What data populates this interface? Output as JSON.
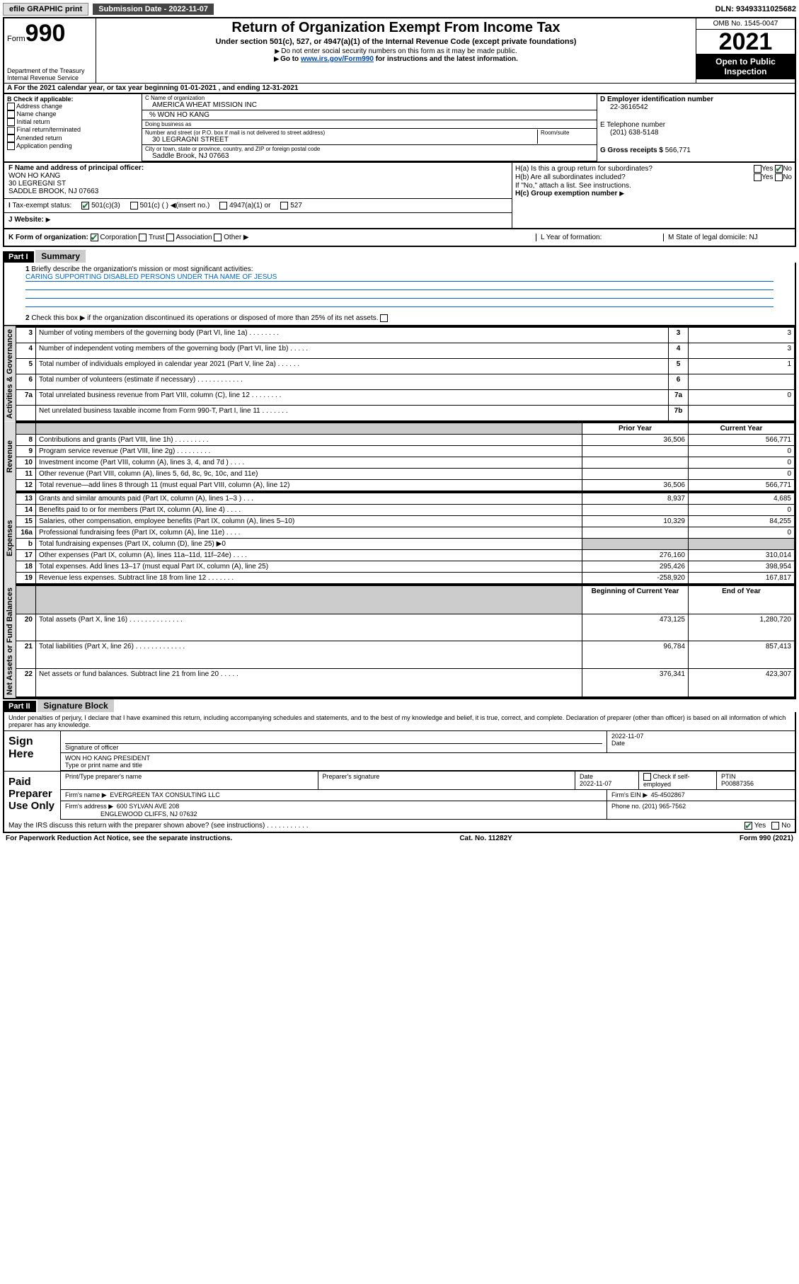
{
  "topbar": {
    "efile_label": "efile GRAPHIC print",
    "submission_label": "Submission Date - 2022-11-07",
    "dln_label": "DLN: 93493311025682"
  },
  "header": {
    "form_label": "Form",
    "form_number": "990",
    "dept": "Department of the Treasury",
    "irs": "Internal Revenue Service",
    "title": "Return of Organization Exempt From Income Tax",
    "sub1": "Under section 501(c), 527, or 4947(a)(1) of the Internal Revenue Code (except private foundations)",
    "sub2": "Do not enter social security numbers on this form as it may be made public.",
    "sub3_pre": "Go to ",
    "sub3_link": "www.irs.gov/Form990",
    "sub3_post": " for instructions and the latest information.",
    "omb": "OMB No. 1545-0047",
    "year": "2021",
    "open_pub": "Open to Public Inspection"
  },
  "rowA": "For the 2021 calendar year, or tax year beginning 01-01-2021   , and ending 12-31-2021",
  "sectionB": {
    "label": "B Check if applicable:",
    "opts": [
      "Address change",
      "Name change",
      "Initial return",
      "Final return/terminated",
      "Amended return",
      "Application pending"
    ]
  },
  "sectionC": {
    "name_lbl": "C Name of organization",
    "name": "AMERICA WHEAT MISSION INC",
    "care_of": "% WON HO KANG",
    "dba_lbl": "Doing business as",
    "addr_lbl": "Number and street (or P.O. box if mail is not delivered to street address)",
    "room_lbl": "Room/suite",
    "addr": "30 LEGRAGNI STREET",
    "city_lbl": "City or town, state or province, country, and ZIP or foreign postal code",
    "city": "Saddle Brook, NJ  07663"
  },
  "sectionD": {
    "ein_lbl": "D Employer identification number",
    "ein": "22-3616542",
    "phone_lbl": "E Telephone number",
    "phone": "(201) 638-5148",
    "gross_lbl": "G Gross receipts $",
    "gross": "566,771"
  },
  "sectionF": {
    "lbl": "F Name and address of principal officer:",
    "name": "WON HO KANG",
    "addr1": "30 LEGREGNI ST",
    "addr2": "SADDLE BROOK, NJ  07663"
  },
  "sectionH": {
    "ha": "H(a)  Is this a group return for subordinates?",
    "ha_ans": "No",
    "hb": "H(b)  Are all subordinates included?",
    "hb_note": "If \"No,\" attach a list. See instructions.",
    "hc": "H(c)  Group exemption number"
  },
  "sectionI": {
    "lbl": "Tax-exempt status:",
    "opt1": "501(c)(3)",
    "opt2": "501(c) (   )",
    "opt2_note": "(insert no.)",
    "opt3": "4947(a)(1) or",
    "opt4": "527"
  },
  "sectionJ": {
    "lbl": "Website:"
  },
  "sectionK": {
    "lbl": "K Form of organization:",
    "opts": [
      "Corporation",
      "Trust",
      "Association",
      "Other"
    ]
  },
  "sectionL": "L Year of formation:",
  "sectionM": "M State of legal domicile: NJ",
  "part1": {
    "hdr": "Part I",
    "title": "Summary",
    "q1": "Briefly describe the organization's mission or most significant activities:",
    "mission": "CARING SUPPORTING DISABLED PERSONS UNDER THA NAME OF JESUS",
    "q2": "Check this box ▶       if the organization discontinued its operations or disposed of more than 25% of its net assets.",
    "rows_top": [
      {
        "n": "3",
        "t": "Number of voting members of the governing body (Part VI, line 1a)   .    .    .    .    .    .    .      .",
        "box": "3",
        "v": "3"
      },
      {
        "n": "4",
        "t": "Number of independent voting members of the governing body (Part VI, line 1b)   .    .    .    .    .",
        "box": "4",
        "v": "3"
      },
      {
        "n": "5",
        "t": "Total number of individuals employed in calendar year 2021 (Part V, line 2a)   .    .    .    .    .    .",
        "box": "5",
        "v": "1"
      },
      {
        "n": "6",
        "t": "Total number of volunteers (estimate if necessary)   .    .    .    .    .    .    .    .    .    .    .    .",
        "box": "6",
        "v": ""
      },
      {
        "n": "7a",
        "t": "Total unrelated business revenue from Part VIII, column (C), line 12   .    .    .    .    .    .    .    .",
        "box": "7a",
        "v": "0"
      },
      {
        "n": "",
        "t": "Net unrelated business taxable income from Form 990-T, Part I, line 11   .    .    .    .    .    .    .",
        "box": "7b",
        "v": ""
      }
    ],
    "prior_hdr": "Prior Year",
    "curr_hdr": "Current Year",
    "revenue_rows": [
      {
        "n": "8",
        "t": "Contributions and grants (Part VIII, line 1h)   .    .    .    .    .    .    .    .    .",
        "p": "36,506",
        "c": "566,771"
      },
      {
        "n": "9",
        "t": "Program service revenue (Part VIII, line 2g)   .    .    .    .    .    .    .    .    .",
        "p": "",
        "c": "0"
      },
      {
        "n": "10",
        "t": "Investment income (Part VIII, column (A), lines 3, 4, and 7d )   .    .    .    .",
        "p": "",
        "c": "0"
      },
      {
        "n": "11",
        "t": "Other revenue (Part VIII, column (A), lines 5, 6d, 8c, 9c, 10c, and 11e)",
        "p": "",
        "c": "0"
      },
      {
        "n": "12",
        "t": "Total revenue—add lines 8 through 11 (must equal Part VIII, column (A), line 12)",
        "p": "36,506",
        "c": "566,771"
      }
    ],
    "expense_rows": [
      {
        "n": "13",
        "t": "Grants and similar amounts paid (Part IX, column (A), lines 1–3 )   .    .    .",
        "p": "8,937",
        "c": "4,685"
      },
      {
        "n": "14",
        "t": "Benefits paid to or for members (Part IX, column (A), line 4)   .    .    .    .",
        "p": "",
        "c": "0"
      },
      {
        "n": "15",
        "t": "Salaries, other compensation, employee benefits (Part IX, column (A), lines 5–10)",
        "p": "10,329",
        "c": "84,255"
      },
      {
        "n": "16a",
        "t": "Professional fundraising fees (Part IX, column (A), line 11e)   .    .    .    .",
        "p": "",
        "c": "0"
      },
      {
        "n": "b",
        "t": "Total fundraising expenses (Part IX, column (D), line 25) ▶0",
        "p": "",
        "c": "",
        "shade": true
      },
      {
        "n": "17",
        "t": "Other expenses (Part IX, column (A), lines 11a–11d, 11f–24e)   .    .    .    .",
        "p": "276,160",
        "c": "310,014"
      },
      {
        "n": "18",
        "t": "Total expenses. Add lines 13–17 (must equal Part IX, column (A), line 25)",
        "p": "295,426",
        "c": "398,954"
      },
      {
        "n": "19",
        "t": "Revenue less expenses. Subtract line 18 from line 12   .    .    .    .    .    .    .",
        "p": "-258,920",
        "c": "167,817"
      }
    ],
    "net_hdr1": "Beginning of Current Year",
    "net_hdr2": "End of Year",
    "net_rows": [
      {
        "n": "20",
        "t": "Total assets (Part X, line 16)   .    .    .    .    .    .    .    .    .    .    .    .    .    .",
        "p": "473,125",
        "c": "1,280,720"
      },
      {
        "n": "21",
        "t": "Total liabilities (Part X, line 26)   .    .    .    .    .    .    .    .    .    .    .    .    .",
        "p": "96,784",
        "c": "857,413"
      },
      {
        "n": "22",
        "t": "Net assets or fund balances. Subtract line 21 from line 20   .    .    .    .    .",
        "p": "376,341",
        "c": "423,307"
      }
    ],
    "side_labels": {
      "gov": "Activities & Governance",
      "rev": "Revenue",
      "exp": "Expenses",
      "net": "Net Assets or Fund Balances"
    }
  },
  "part2": {
    "hdr": "Part II",
    "title": "Signature Block",
    "declare": "Under penalties of perjury, I declare that I have examined this return, including accompanying schedules and statements, and to the best of my knowledge and belief, it is true, correct, and complete. Declaration of preparer (other than officer) is based on all information of which preparer has any knowledge.",
    "sign_here": "Sign Here",
    "sig_officer_lbl": "Signature of officer",
    "date_lbl": "Date",
    "date": "2022-11-07",
    "officer_name": "WON HO KANG PRESIDENT",
    "officer_name_lbl": "Type or print name and title",
    "paid_lbl": "Paid Preparer Use Only",
    "prep_name_lbl": "Print/Type preparer's name",
    "prep_sig_lbl": "Preparer's signature",
    "prep_date_lbl": "Date",
    "prep_date": "2022-11-07",
    "self_emp": "Check         if self-employed",
    "ptin_lbl": "PTIN",
    "ptin": "P00887356",
    "firm_name_lbl": "Firm's name",
    "firm_name": "EVERGREEN TAX CONSULTING LLC",
    "firm_ein_lbl": "Firm's EIN",
    "firm_ein": "45-4502867",
    "firm_addr_lbl": "Firm's address",
    "firm_addr1": "600 SYLVAN AVE 208",
    "firm_addr2": "ENGLEWOOD CLIFFS, NJ  07632",
    "firm_phone_lbl": "Phone no.",
    "firm_phone": "(201) 965-7562",
    "discuss": "May the IRS discuss this return with the preparer shown above? (see instructions)   .    .    .    .    .    .    .    .    .    .    .",
    "discuss_ans": "Yes"
  },
  "footer": {
    "left": "For Paperwork Reduction Act Notice, see the separate instructions.",
    "mid": "Cat. No. 11282Y",
    "right": "Form 990 (2021)"
  }
}
